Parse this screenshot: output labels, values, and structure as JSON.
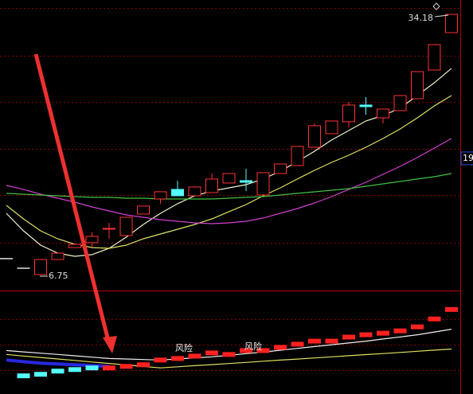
{
  "chart_data": [
    {
      "type": "candlestick",
      "open": [
        8.43,
        7.42,
        6.75,
        8.34,
        9.6,
        10.11,
        11.58,
        10.86,
        13.13,
        14.72,
        15.73,
        15.06,
        15.39,
        16.4,
        16.65,
        15.14,
        17.4,
        18.24,
        20.17,
        21.6,
        22.86,
        24.62,
        23.27,
        24.03,
        25.29,
        28.31,
        32.25
      ],
      "high": [
        8.43,
        7.42,
        8.34,
        9.01,
        9.94,
        11.2,
        12.2,
        12.79,
        13.97,
        15.48,
        16.65,
        15.98,
        17.4,
        17.4,
        17.91,
        17.49,
        18.41,
        20.26,
        22.69,
        22.94,
        24.95,
        25.46,
        24.2,
        25.62,
        28.14,
        30.99,
        34.18
      ],
      "low": [
        8.43,
        7.42,
        6.75,
        8.34,
        9.6,
        9.69,
        10.53,
        10.86,
        13.13,
        14.22,
        15.06,
        15.06,
        15.39,
        16.4,
        15.56,
        15.14,
        17.4,
        18.24,
        20.17,
        21.6,
        22.27,
        23.61,
        22.69,
        24.03,
        25.29,
        28.31,
        32.25
      ],
      "close": [
        8.43,
        7.42,
        8.34,
        9.01,
        9.94,
        10.78,
        11.62,
        12.79,
        13.97,
        15.48,
        15.06,
        15.98,
        16.82,
        17.4,
        16.48,
        17.49,
        18.41,
        20.26,
        22.44,
        22.94,
        24.62,
        24.45,
        24.2,
        25.62,
        28.14,
        30.99,
        34.18
      ],
      "up_color": "#ff3232",
      "down_color": "#54fcfc",
      "flat_color": "#e0e0e0",
      "series": [
        {
          "color": "#f0f0c8",
          "values": [
            13.21,
            11.36,
            9.85,
            9.01,
            8.68,
            8.85,
            9.52,
            10.69,
            12.03,
            13.21,
            14.22,
            15.05,
            15.56,
            15.89,
            16.23,
            16.82,
            17.65,
            18.66,
            19.75,
            20.93,
            21.93,
            22.94,
            23.53,
            24.28,
            25.62,
            26.97,
            28.48
          ]
        },
        {
          "color": "#e0e060",
          "values": [
            14.05,
            12.62,
            11.36,
            10.52,
            9.94,
            9.6,
            9.52,
            9.85,
            10.52,
            11.03,
            11.53,
            12.03,
            12.62,
            13.38,
            14.13,
            15.05,
            15.89,
            16.82,
            17.74,
            18.58,
            19.33,
            20.17,
            21.09,
            22.1,
            23.27,
            24.53,
            25.62
          ]
        },
        {
          "color": "#d040d0",
          "values": [
            16.14,
            15.73,
            15.22,
            14.8,
            14.38,
            13.88,
            13.46,
            13.04,
            12.79,
            12.54,
            12.37,
            12.2,
            12.12,
            12.2,
            12.37,
            12.71,
            13.21,
            13.71,
            14.3,
            14.97,
            15.73,
            16.48,
            17.32,
            18.16,
            19.08,
            20.09,
            21.09
          ]
        },
        {
          "color": "#40c040",
          "values": [
            15.31,
            15.22,
            15.14,
            15.05,
            14.97,
            14.89,
            14.89,
            14.8,
            14.8,
            14.72,
            14.72,
            14.72,
            14.72,
            14.8,
            14.89,
            14.97,
            15.14,
            15.31,
            15.47,
            15.64,
            15.81,
            16.06,
            16.31,
            16.56,
            16.82,
            17.07,
            17.4
          ]
        }
      ],
      "ylim": [
        5.07,
        35.69
      ],
      "yticks": [
        19
      ],
      "ygrid": [
        34.86,
        29.82,
        24.96,
        20.01,
        15.14,
        10.11
      ]
    },
    {
      "type": "indicator",
      "ylim": [
        0,
        100
      ],
      "ygrid": [
        73.1,
        47.7,
        23.1
      ],
      "annotations": [
        "风险",
        "风险"
      ],
      "series": [
        {
          "color": "#f0f0f0",
          "style": "line",
          "values": [
            42.3,
            41.0,
            39.8,
            38.5,
            37.2,
            35.9,
            34.6,
            34.1,
            33.6,
            33.1,
            34.1,
            35.2,
            36.2,
            37.7,
            39.3,
            40.8,
            42.6,
            44.4,
            46.2,
            48.0,
            49.7,
            51.5,
            53.6,
            55.6,
            57.7,
            60.4,
            63.1
          ]
        },
        {
          "color": "#e0e060",
          "style": "line",
          "values": [
            38.5,
            37.0,
            35.6,
            34.1,
            32.7,
            31.2,
            29.8,
            28.3,
            26.8,
            25.4,
            26.5,
            27.6,
            28.6,
            29.7,
            30.8,
            31.9,
            33.0,
            34.0,
            35.1,
            36.2,
            37.3,
            38.4,
            39.4,
            40.5,
            41.6,
            42.7,
            43.8
          ]
        },
        {
          "color": "#2828e0",
          "style": "thick",
          "values": [
            33.1,
            31.5,
            30.0,
            29.2,
            28.5,
            27.7,
            26.9,
            null,
            null,
            null,
            null,
            null,
            null,
            null,
            null,
            null,
            null,
            null,
            null,
            null,
            null,
            null,
            null,
            null,
            null,
            null,
            null
          ]
        },
        {
          "color": "#54fcfc",
          "style": "block",
          "values": [
            null,
            17.7,
            19.2,
            22.3,
            23.8,
            25.4,
            null,
            null,
            null,
            null,
            null,
            null,
            null,
            null,
            null,
            null,
            null,
            null,
            null,
            null,
            null,
            null,
            null,
            null,
            null,
            null,
            null
          ]
        },
        {
          "color": "#ff2020",
          "style": "block",
          "values": [
            null,
            null,
            null,
            null,
            null,
            null,
            25.4,
            26.9,
            28.5,
            33.1,
            34.6,
            36.9,
            40.0,
            38.5,
            42.3,
            42.3,
            45.4,
            48.5,
            51.5,
            51.5,
            55.4,
            57.7,
            59.2,
            61.5,
            65.4,
            73.1,
            82.3
          ]
        }
      ]
    }
  ]
}
